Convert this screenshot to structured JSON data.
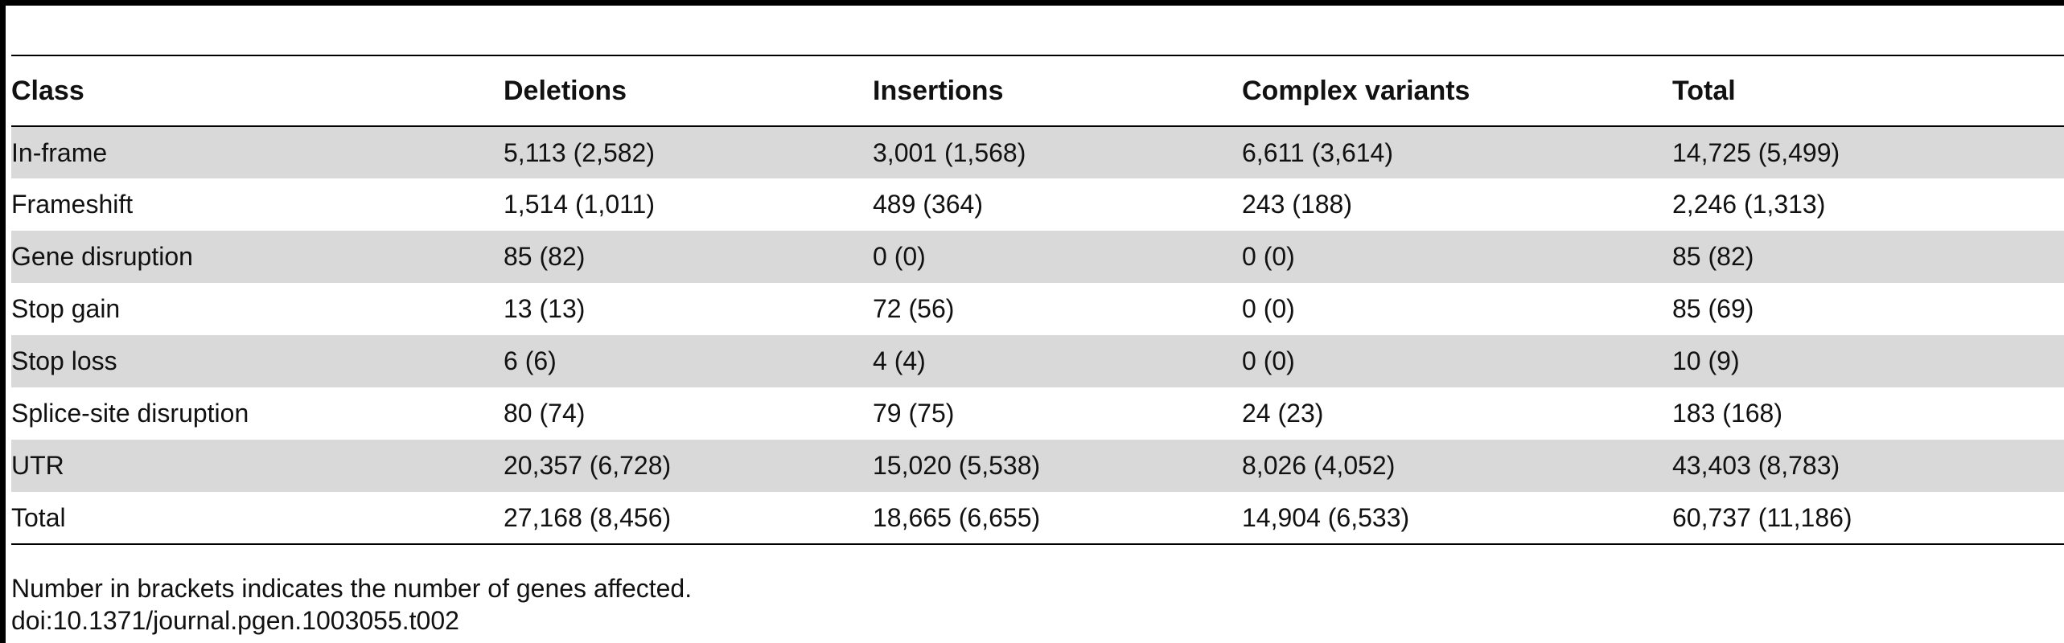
{
  "table": {
    "columns": [
      "Class",
      "Deletions",
      "Insertions",
      "Complex variants",
      "Total"
    ],
    "rows": [
      [
        "In-frame",
        "5,113 (2,582)",
        "3,001 (1,568)",
        "6,611 (3,614)",
        "14,725 (5,499)"
      ],
      [
        "Frameshift",
        "1,514 (1,011)",
        "489 (364)",
        "243 (188)",
        "2,246 (1,313)"
      ],
      [
        "Gene disruption",
        "85 (82)",
        "0 (0)",
        "0 (0)",
        "85 (82)"
      ],
      [
        "Stop gain",
        "13 (13)",
        "72 (56)",
        "0 (0)",
        "85 (69)"
      ],
      [
        "Stop loss",
        "6 (6)",
        "4 (4)",
        "0 (0)",
        "10 (9)"
      ],
      [
        "Splice-site disruption",
        "80 (74)",
        "79 (75)",
        "24 (23)",
        "183 (168)"
      ],
      [
        "UTR",
        "20,357 (6,728)",
        "15,020 (5,538)",
        "8,026 (4,052)",
        "43,403 (8,783)"
      ],
      [
        "Total",
        "27,168 (8,456)",
        "18,665 (6,655)",
        "14,904 (6,533)",
        "60,737 (11,186)"
      ]
    ]
  },
  "footnote": {
    "note": "Number in brackets indicates the number of genes affected.",
    "doi": "doi:10.1371/journal.pgen.1003055.t002"
  },
  "colors": {
    "shaded_row": "#d9d9d9",
    "rule": "#000000"
  }
}
